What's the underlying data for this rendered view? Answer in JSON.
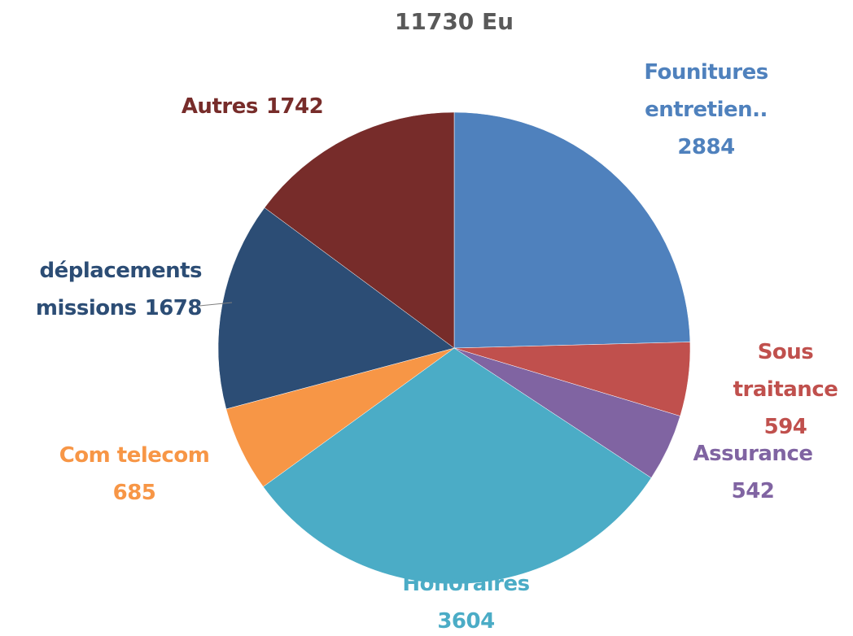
{
  "chart_data": {
    "type": "pie",
    "title": "11730 Eu",
    "categories": [
      "Founitures entretien..",
      "Sous traitance",
      "Assurance",
      "Honoraires",
      "Com telecom",
      "déplacements missions",
      "Autres"
    ],
    "values": [
      2884,
      594,
      542,
      3604,
      685,
      1678,
      1742
    ],
    "colors": [
      "#4f81bd",
      "#c0504d",
      "#8064a2",
      "#4bacc6",
      "#f79646",
      "#2c4d75",
      "#772c2a"
    ]
  }
}
